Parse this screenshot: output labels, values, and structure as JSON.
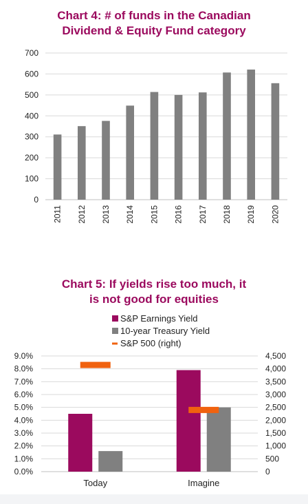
{
  "colors": {
    "title": "#9b0a5e",
    "bar_gray": "#808080",
    "earnings": "#9b0a5e",
    "treasury": "#808080",
    "sp500": "#f0620f"
  },
  "chart_data": [
    {
      "type": "bar",
      "title_lines": [
        "Chart 4: # of funds in the Canadian",
        "Dividend & Equity Fund category"
      ],
      "categories": [
        "2011",
        "2012",
        "2013",
        "2014",
        "2015",
        "2016",
        "2017",
        "2018",
        "2019",
        "2020"
      ],
      "values": [
        311,
        351,
        376,
        449,
        514,
        500,
        512,
        607,
        621,
        556
      ],
      "ylim": [
        0,
        700
      ],
      "yticks": [
        "0",
        "100",
        "200",
        "300",
        "400",
        "500",
        "600",
        "700"
      ],
      "grid": true
    },
    {
      "type": "bar",
      "title_lines": [
        "Chart 5: If yields rise too much, it",
        "is not good for equities"
      ],
      "categories": [
        "Today",
        "Imagine"
      ],
      "series": [
        {
          "name": "S&P Earnings Yield",
          "values": [
            4.5,
            7.9
          ],
          "axis": "left"
        },
        {
          "name": "10-year Treasury Yield",
          "values": [
            1.6,
            5.0
          ],
          "axis": "left"
        },
        {
          "name": "S&P 500 (right)",
          "values": [
            4150,
            2400
          ],
          "axis": "right",
          "style": "marker"
        }
      ],
      "ylim_left": [
        0,
        9
      ],
      "ylim_right": [
        0,
        4500
      ],
      "yticks_left": [
        "0.0%",
        "1.0%",
        "2.0%",
        "3.0%",
        "4.0%",
        "5.0%",
        "6.0%",
        "7.0%",
        "8.0%",
        "9.0%"
      ],
      "yticks_right": [
        "0",
        "500",
        "1,000",
        "1,500",
        "2,000",
        "2,500",
        "3,000",
        "3,500",
        "4,000",
        "4,500"
      ],
      "legend_position": "top",
      "grid": true
    }
  ]
}
